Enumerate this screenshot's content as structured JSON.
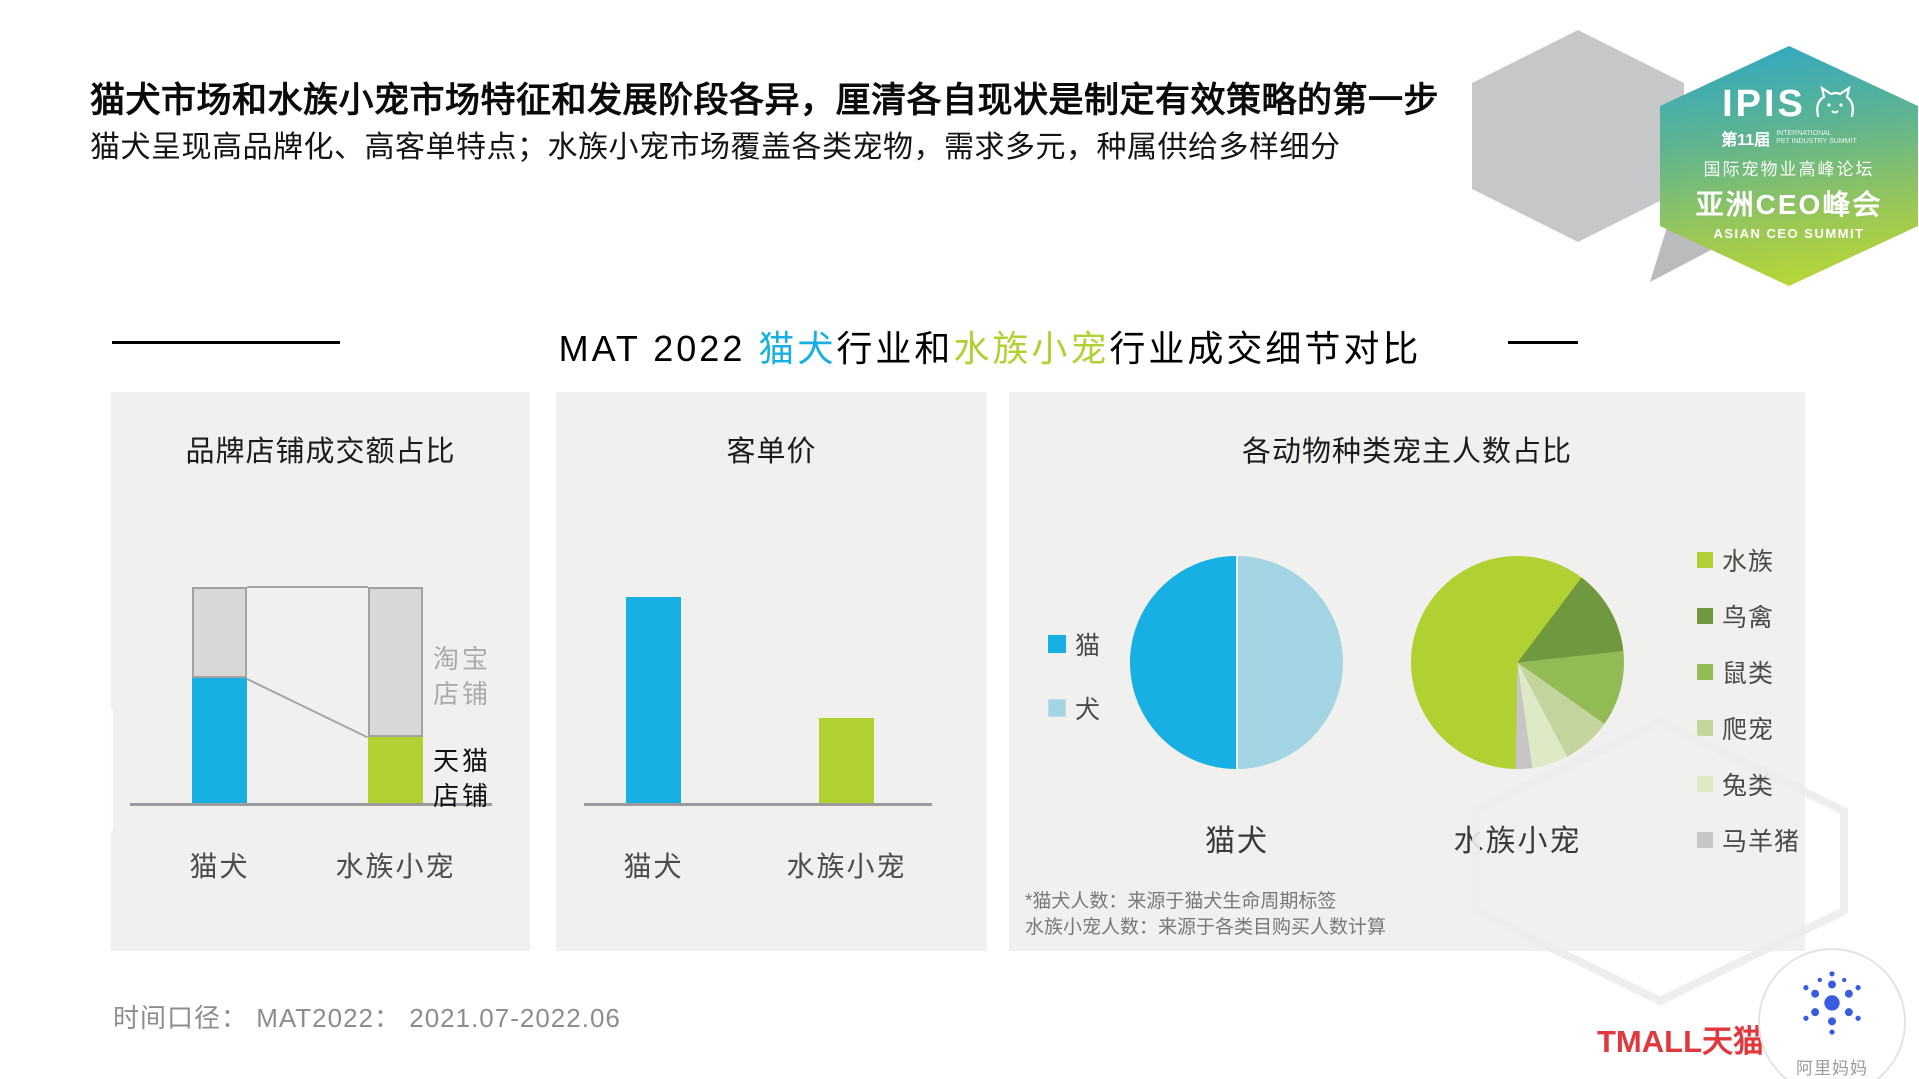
{
  "slide": {
    "title": "猫犬市场和水族小宠市场特征和发展阶段各异，厘清各自现状是制定有效策略的第一步",
    "subtitle": "猫犬呈现高品牌化、高客单特点；水族小宠市场覆盖各类宠物，需求多元，种属供给多样细分"
  },
  "badge": {
    "ipis": "IPIS",
    "edition": "第11届",
    "edition_sub1": "INTERNATIONAL",
    "edition_sub2": "PET INDUSTRY SUMMIT",
    "forum_cn": "国际宠物业高峰论坛",
    "summit_cn": "亚洲CEO峰会",
    "summit_en": "ASIAN CEO SUMMIT"
  },
  "section_heading": {
    "prefix": "MAT 2022 ",
    "blue": "猫犬",
    "middle": "行业和",
    "green": "水族小宠",
    "suffix": "行业成交细节对比"
  },
  "colors": {
    "accent_blue": "#18b0e3",
    "accent_green": "#b1d133",
    "light_blue": "#a3d4e4",
    "taobao_gray": "#d8d8d8",
    "panel_bg": "#f0f0ef",
    "tmall_red": "#e0383c",
    "alimama_blue": "#3a5be0"
  },
  "chart_data": [
    {
      "type": "bar",
      "variant": "100%-stacked",
      "title": "品牌店铺成交额占比",
      "categories": [
        "猫犬",
        "水族小宠"
      ],
      "series": [
        {
          "name": "天猫店铺",
          "values_pct": [
            58,
            31
          ],
          "colors": [
            "#18b0e3",
            "#b1d133"
          ]
        },
        {
          "name": "淘宝店铺",
          "values_pct": [
            42,
            69
          ],
          "colors": [
            "#d8d8d8",
            "#d8d8d8"
          ]
        }
      ],
      "ylim": [
        0,
        100
      ],
      "legend_position": "right",
      "connector_lines": true
    },
    {
      "type": "bar",
      "title": "客单价",
      "categories": [
        "猫犬",
        "水族小宠"
      ],
      "values_relative_pct": [
        100,
        42
      ],
      "colors": [
        "#18b0e3",
        "#b1d133"
      ],
      "value_labels": "none"
    },
    {
      "type": "pie",
      "title": "各动物种类宠主人数占比",
      "pies": [
        {
          "label": "猫犬",
          "legend_position": "left",
          "start_angle_deg": 0,
          "draw_clockwise_from_top": [
            "犬",
            "猫"
          ],
          "slices": [
            {
              "name": "猫",
              "value_pct": 50,
              "color": "#18b0e3"
            },
            {
              "name": "犬",
              "value_pct": 50,
              "color": "#a3d4e4"
            }
          ]
        },
        {
          "label": "水族小宠",
          "legend_position": "right",
          "start_angle_deg": 37,
          "draw_clockwise_from_top": [
            "鸟禽",
            "鼠类",
            "爬宠",
            "兔类",
            "马羊猪",
            "水族"
          ],
          "slices": [
            {
              "name": "水族",
              "value_pct": 60,
              "color": "#b1d133"
            },
            {
              "name": "鸟禽",
              "value_pct": 13,
              "color": "#70983f"
            },
            {
              "name": "鼠类",
              "value_pct": 11.5,
              "color": "#92bb55"
            },
            {
              "name": "爬宠",
              "value_pct": 7.5,
              "color": "#c3d49c"
            },
            {
              "name": "兔类",
              "value_pct": 5.5,
              "color": "#dee9c6"
            },
            {
              "name": "马羊猪",
              "value_pct": 2.5,
              "color": "#c6c6c6"
            }
          ]
        }
      ],
      "footnotes": [
        "*猫犬人数：来源于猫犬生命周期标签",
        "水族小宠人数：来源于各类目购买人数计算"
      ]
    }
  ],
  "footer": {
    "time_caliber": "时间口径：  MAT2022： 2021.07-2022.06",
    "tmall": "TMALL天猫",
    "alimama": "阿里妈妈"
  }
}
